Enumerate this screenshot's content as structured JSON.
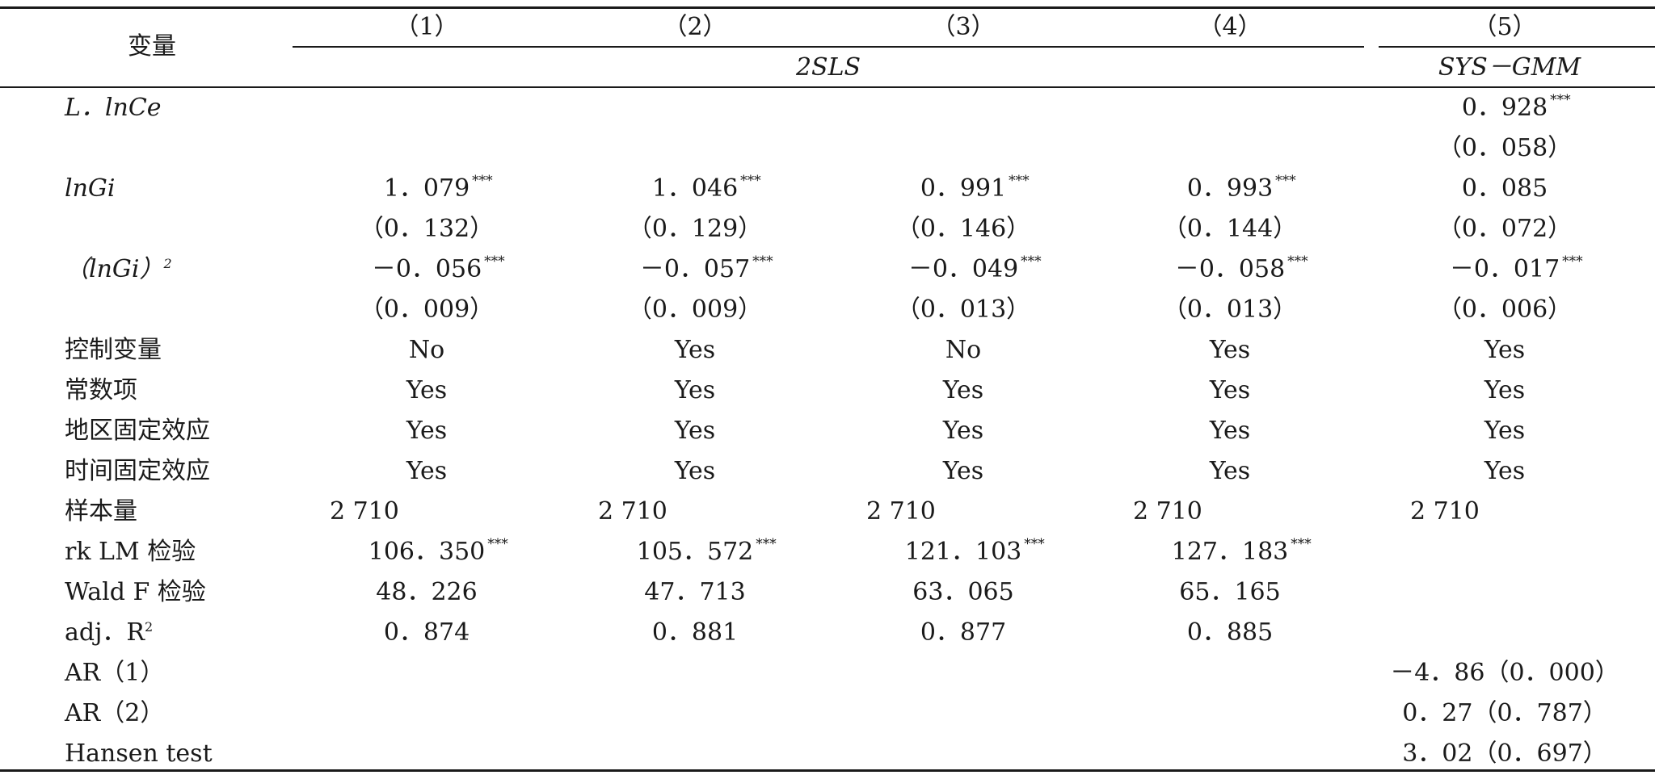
{
  "header": {
    "var_label": "变量",
    "col_nums": [
      "（1）",
      "（2）",
      "（3）",
      "（4）",
      "（5）"
    ],
    "group_2sls": "2SLS",
    "group_gmm": "SYS－GMM"
  },
  "rows": [
    {
      "label": "L．lnCe",
      "italic": true,
      "cells": [
        "",
        "",
        "",
        "",
        "0．928"
      ],
      "stars": [
        "",
        "",
        "",
        "",
        "***"
      ],
      "align": [
        "c",
        "c",
        "c",
        "c",
        "c"
      ]
    },
    {
      "label": "",
      "italic": false,
      "cells": [
        "",
        "",
        "",
        "",
        "（0．058）"
      ],
      "stars": [
        "",
        "",
        "",
        "",
        ""
      ],
      "align": [
        "c",
        "c",
        "c",
        "c",
        "c"
      ]
    },
    {
      "label": "lnGi",
      "italic": true,
      "cells": [
        "1．079",
        "1．046",
        "0．991",
        "0．993",
        "0．085"
      ],
      "stars": [
        "***",
        "***",
        "***",
        "***",
        ""
      ],
      "align": [
        "c",
        "c",
        "c",
        "c",
        "c"
      ]
    },
    {
      "label": "",
      "italic": false,
      "cells": [
        "（0．132）",
        "（0．129）",
        "（0．146）",
        "（0．144）",
        "（0．072）"
      ],
      "stars": [
        "",
        "",
        "",
        "",
        ""
      ],
      "align": [
        "c",
        "c",
        "c",
        "c",
        "c"
      ]
    },
    {
      "label": "（lnGi）",
      "label_sup": "2",
      "italic": true,
      "cells": [
        "－0．056",
        "－0．057",
        "－0．049",
        "－0．058",
        "－0．017"
      ],
      "stars": [
        "***",
        "***",
        "***",
        "***",
        "***"
      ],
      "align": [
        "c",
        "c",
        "c",
        "c",
        "c"
      ]
    },
    {
      "label": "",
      "italic": false,
      "cells": [
        "（0．009）",
        "（0．009）",
        "（0．013）",
        "（0．013）",
        "（0．006）"
      ],
      "stars": [
        "",
        "",
        "",
        "",
        ""
      ],
      "align": [
        "c",
        "c",
        "c",
        "c",
        "c"
      ]
    },
    {
      "label": "控制变量",
      "italic": false,
      "cells": [
        "No",
        "Yes",
        "No",
        "Yes",
        "Yes"
      ],
      "stars": [
        "",
        "",
        "",
        "",
        ""
      ],
      "align": [
        "c",
        "c",
        "c",
        "c",
        "c"
      ]
    },
    {
      "label": "常数项",
      "italic": false,
      "cells": [
        "Yes",
        "Yes",
        "Yes",
        "Yes",
        "Yes"
      ],
      "stars": [
        "",
        "",
        "",
        "",
        ""
      ],
      "align": [
        "c",
        "c",
        "c",
        "c",
        "c"
      ]
    },
    {
      "label": "地区固定效应",
      "italic": false,
      "cells": [
        "Yes",
        "Yes",
        "Yes",
        "Yes",
        "Yes"
      ],
      "stars": [
        "",
        "",
        "",
        "",
        ""
      ],
      "align": [
        "c",
        "c",
        "c",
        "c",
        "c"
      ]
    },
    {
      "label": "时间固定效应",
      "italic": false,
      "cells": [
        "Yes",
        "Yes",
        "Yes",
        "Yes",
        "Yes"
      ],
      "stars": [
        "",
        "",
        "",
        "",
        ""
      ],
      "align": [
        "c",
        "c",
        "c",
        "c",
        "c"
      ]
    },
    {
      "label": "样本量",
      "italic": false,
      "cells": [
        "2 710",
        "2 710",
        "2 710",
        "2 710",
        "2 710"
      ],
      "stars": [
        "",
        "",
        "",
        "",
        ""
      ],
      "align": [
        "l",
        "l",
        "l",
        "l",
        "l"
      ]
    },
    {
      "label": "rk LM 检验",
      "italic": false,
      "cells": [
        "106．350",
        "105．572",
        "121．103",
        "127．183",
        ""
      ],
      "stars": [
        "***",
        "***",
        "***",
        "***",
        ""
      ],
      "align": [
        "c",
        "c",
        "c",
        "c",
        "c"
      ]
    },
    {
      "label": "Wald F 检验",
      "italic": false,
      "cells": [
        "48．226",
        "47．713",
        "63．065",
        "65．165",
        ""
      ],
      "stars": [
        "",
        "",
        "",
        "",
        ""
      ],
      "align": [
        "c",
        "c",
        "c",
        "c",
        "c"
      ]
    },
    {
      "label": "adj．R",
      "label_sup": "2",
      "italic": false,
      "cells": [
        "0．874",
        "0．881",
        "0．877",
        "0．885",
        ""
      ],
      "stars": [
        "",
        "",
        "",
        "",
        ""
      ],
      "align": [
        "c",
        "c",
        "c",
        "c",
        "c"
      ]
    },
    {
      "label": "AR（1）",
      "italic": false,
      "cells": [
        "",
        "",
        "",
        "",
        "－4．86（0．000）"
      ],
      "stars": [
        "",
        "",
        "",
        "",
        ""
      ],
      "align": [
        "c",
        "c",
        "c",
        "c",
        "c"
      ]
    },
    {
      "label": "AR（2）",
      "italic": false,
      "cells": [
        "",
        "",
        "",
        "",
        "0．27（0．787）"
      ],
      "stars": [
        "",
        "",
        "",
        "",
        ""
      ],
      "align": [
        "c",
        "c",
        "c",
        "c",
        "c"
      ]
    },
    {
      "label": "Hansen test",
      "italic": false,
      "cells": [
        "",
        "",
        "",
        "",
        "3．02（0．697）"
      ],
      "stars": [
        "",
        "",
        "",
        "",
        ""
      ],
      "align": [
        "c",
        "c",
        "c",
        "c",
        "c"
      ]
    }
  ]
}
